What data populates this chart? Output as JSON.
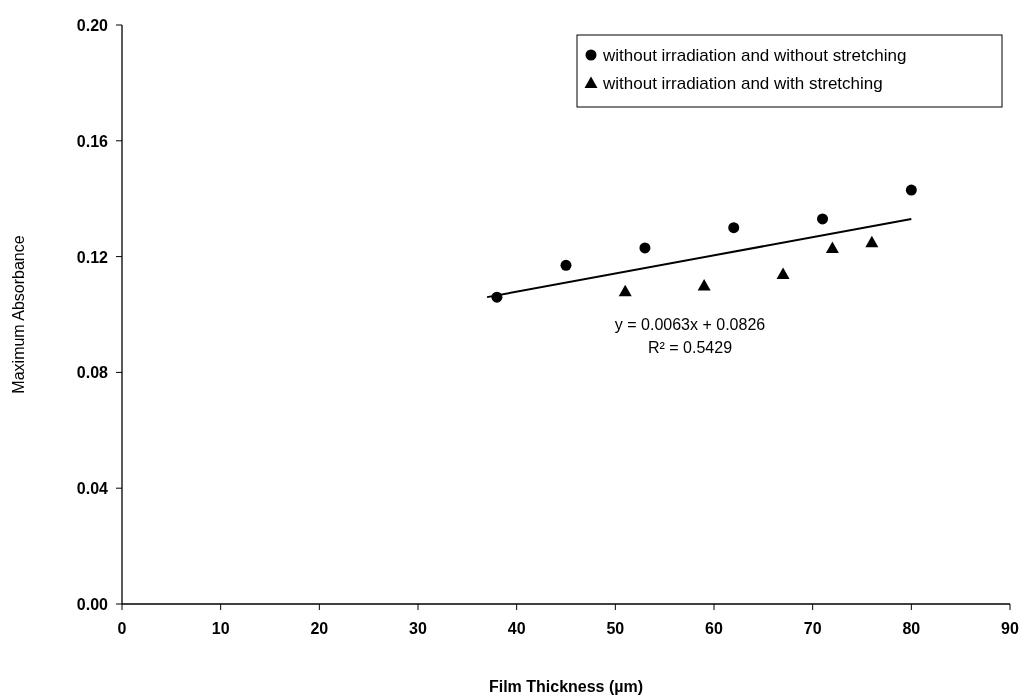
{
  "chart_data": {
    "type": "scatter",
    "xlabel": "Film Thickness (µm)",
    "ylabel": "Maximum Absorbance",
    "xlim": [
      0,
      90
    ],
    "xticks": [
      0,
      10,
      20,
      30,
      40,
      50,
      60,
      70,
      80,
      90
    ],
    "ylim": [
      0,
      0.2
    ],
    "yticks": [
      {
        "value": 0,
        "label": "0.00"
      },
      {
        "value": 0.04,
        "label": "0.04"
      },
      {
        "value": 0.08,
        "label": "0.08"
      },
      {
        "value": 0.12,
        "label": "0.12"
      },
      {
        "value": 0.16,
        "label": "0.16"
      },
      {
        "value": 0.2,
        "label": "0.20"
      }
    ],
    "grid": false,
    "legend": "top right",
    "series": [
      {
        "name": "without irradiation and without stretching",
        "color": "#000000",
        "marker": "circle",
        "x": [
          38,
          45,
          53,
          62,
          71,
          80
        ],
        "values": [
          0.106,
          0.117,
          0.123,
          0.13,
          0.133,
          0.143
        ]
      },
      {
        "name": "without irradiation and with stretching",
        "color": "#000000",
        "marker": "triangle",
        "x": [
          51,
          59,
          67,
          72,
          76
        ],
        "values": [
          0.108,
          0.11,
          0.114,
          0.123,
          0.125
        ]
      },
      {
        "type": "line",
        "color": "#000000",
        "marker": "none",
        "x": [
          37,
          80
        ],
        "values": [
          0.106,
          0.133
        ]
      }
    ],
    "annotations": [
      "y = 0.0063x + 0.0826",
      "R² = 0.5429"
    ]
  }
}
